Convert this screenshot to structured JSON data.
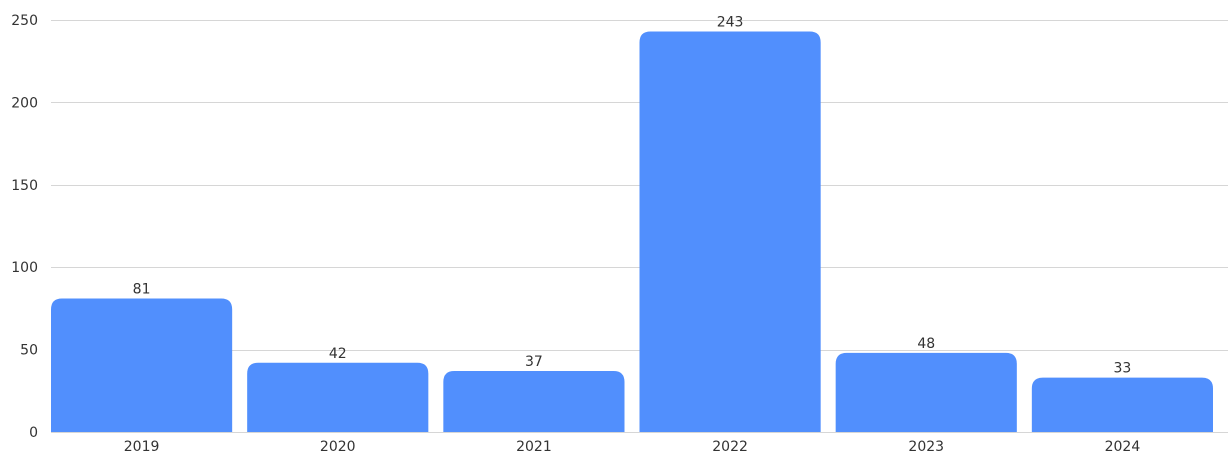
{
  "chart_data": {
    "type": "bar",
    "categories": [
      "2019",
      "2020",
      "2021",
      "2022",
      "2023",
      "2024"
    ],
    "values": [
      81,
      42,
      37,
      243,
      48,
      33
    ],
    "data_labels": [
      "81",
      "42",
      "37",
      "243",
      "48",
      "33"
    ],
    "title": "",
    "xlabel": "",
    "ylabel": "",
    "ylim": [
      0,
      250
    ],
    "yticks": [
      0,
      50,
      100,
      150,
      200,
      250
    ],
    "ytick_labels": [
      "0",
      "50",
      "100",
      "150",
      "200",
      "250"
    ],
    "grid": true,
    "legend": "none",
    "bar_color": "#518ffd"
  }
}
